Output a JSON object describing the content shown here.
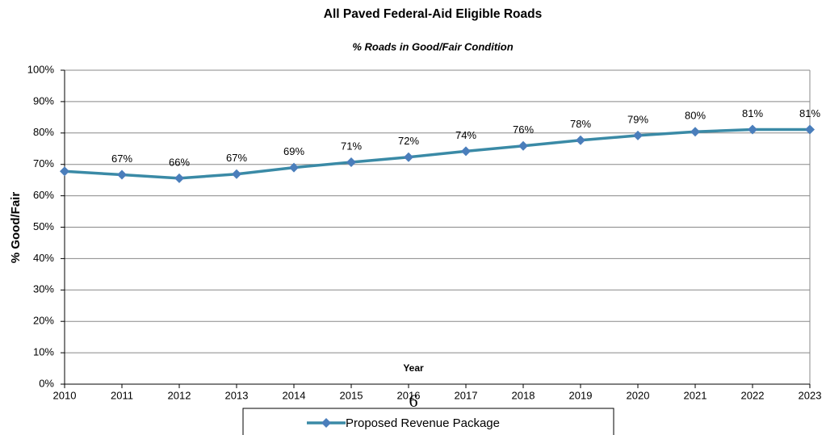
{
  "chart_data": {
    "type": "line",
    "title": "All Paved Federal-Aid Eligible Roads",
    "subtitle": "% Roads in Good/Fair Condition",
    "y_label": "% Good/Fair",
    "x_label": "Year",
    "page_number": "6",
    "x": [
      2010,
      2011,
      2012,
      2013,
      2014,
      2015,
      2016,
      2017,
      2018,
      2019,
      2020,
      2021,
      2022,
      2023
    ],
    "series": [
      {
        "name": "Proposed Revenue Package",
        "color": "#3a8aa6",
        "marker_color": "#4a7ebb",
        "values": [
          67.8,
          66.7,
          65.6,
          66.9,
          69.0,
          70.7,
          72.3,
          74.2,
          75.9,
          77.7,
          79.2,
          80.4,
          81.1,
          81.1
        ],
        "value_labels": [
          null,
          "67%",
          "66%",
          "67%",
          "69%",
          "71%",
          "72%",
          "74%",
          "76%",
          "78%",
          "79%",
          "80%",
          "81%",
          "81%"
        ]
      }
    ],
    "xlim": [
      2010,
      2023
    ],
    "xticks": [
      2010,
      2011,
      2012,
      2013,
      2014,
      2015,
      2016,
      2017,
      2018,
      2019,
      2020,
      2021,
      2022,
      2023
    ],
    "ylim": [
      0,
      100
    ],
    "yticks": [
      {
        "value": 0,
        "label": "0%"
      },
      {
        "value": 10,
        "label": "10%"
      },
      {
        "value": 20,
        "label": "20%"
      },
      {
        "value": 30,
        "label": "30%"
      },
      {
        "value": 40,
        "label": "40%"
      },
      {
        "value": 50,
        "label": "50%"
      },
      {
        "value": 60,
        "label": "60%"
      },
      {
        "value": 70,
        "label": "70%"
      },
      {
        "value": 80,
        "label": "80%"
      },
      {
        "value": 90,
        "label": "90%"
      },
      {
        "value": 100,
        "label": "100%"
      }
    ],
    "grid": true,
    "legend": "bottom"
  }
}
